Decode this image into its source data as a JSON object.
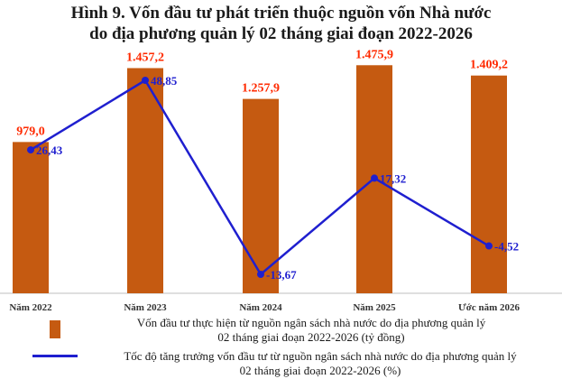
{
  "title_line1": "Hình 9. Vốn đầu tư phát triển thuộc nguồn vốn Nhà nước",
  "title_line2": "do địa phương quản lý 02 tháng giai đoạn 2022-2026",
  "colors": {
    "bar": "#c55a11",
    "bar_label": "#ff2a00",
    "line": "#1f1fcf",
    "line_label": "#1f1fcf"
  },
  "chart_data": {
    "type": "bar",
    "categories": [
      "Năm 2022",
      "Năm 2023",
      "Năm 2024",
      "Năm 2025",
      "Ước năm 2026"
    ],
    "series": [
      {
        "name": "Vốn đầu tư thực hiện từ nguồn ngân sách nhà nước do địa phương quản lý 02 tháng giai đoạn 2022-2026 (tỷ đồng)",
        "type": "bar",
        "values": [
          979.0,
          1457.2,
          1257.9,
          1475.9,
          1409.2
        ],
        "labels": [
          "979,0",
          "1.457,2",
          "1.257,9",
          "1.475,9",
          "1.409,2"
        ]
      },
      {
        "name": "Tốc độ tăng trưởng vốn đầu tư từ nguồn ngân sách nhà nước do địa phương quản lý 02 tháng giai đoạn 2022-2026 (%)",
        "type": "line",
        "values": [
          26.43,
          48.85,
          -13.67,
          17.32,
          -4.52
        ],
        "labels": [
          "26,43",
          "48,85",
          "-13,67",
          "17,32",
          "-4,52"
        ]
      }
    ],
    "bar_axis_range": [
      0,
      1700
    ],
    "line_axis_range": [
      -20,
      60
    ],
    "grid": false,
    "legend_position": "bottom"
  },
  "legend": {
    "bar_line1": "Vốn đầu tư thực hiện từ nguồn ngân sách nhà nước do địa phương quản lý",
    "bar_line2": "02 tháng giai đoạn 2022-2026 (tỷ đồng)",
    "line_line1": "Tốc độ tăng trưởng vốn đầu tư từ nguồn ngân sách nhà nước do địa phương quản lý",
    "line_line2": "02 tháng giai đoạn 2022-2026 (%)"
  }
}
